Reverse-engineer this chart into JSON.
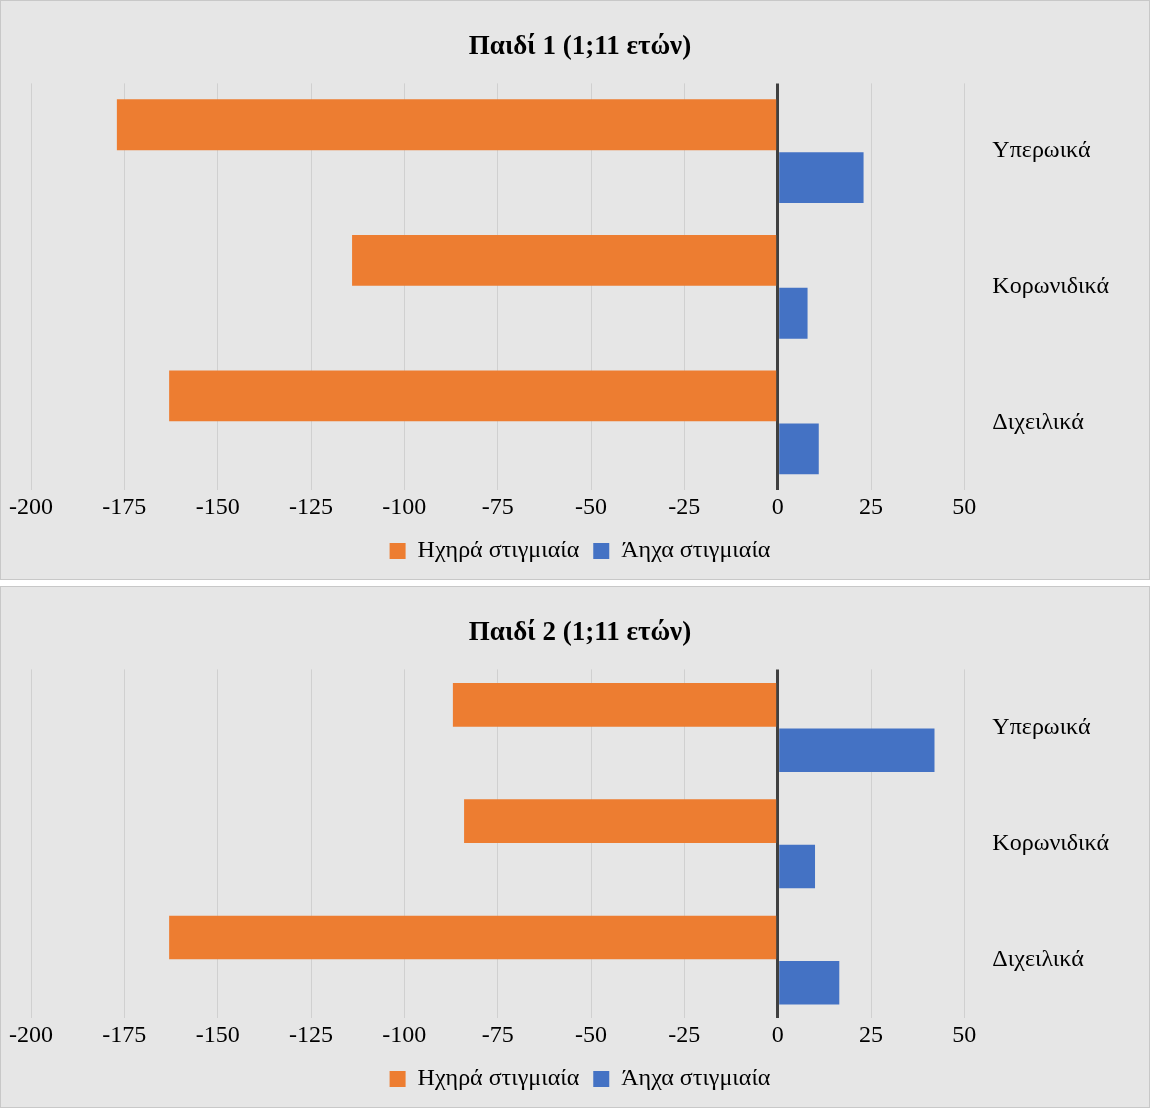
{
  "chart_data": [
    {
      "type": "bar",
      "orientation": "horizontal",
      "title": "Παιδί 1 (1;11 ετών)",
      "categories": [
        "Υπερωικά",
        "Κορωνιδικά",
        "Διχειλικά"
      ],
      "series": [
        {
          "name": "Ηχηρά στιγμιαία",
          "color": "#ed7d31",
          "values": [
            -177,
            -114,
            -163
          ]
        },
        {
          "name": "Άηχα στιγμιαία",
          "color": "#4472c4",
          "values": [
            23,
            8,
            11
          ]
        }
      ],
      "xlim": [
        -200,
        50
      ],
      "xticks": [
        -200,
        -175,
        -150,
        -125,
        -100,
        -75,
        -50,
        -25,
        0,
        25,
        50
      ],
      "grid": "x",
      "legend": "bottom"
    },
    {
      "type": "bar",
      "orientation": "horizontal",
      "title": "Παιδί 2 (1;11 ετών)",
      "categories": [
        "Υπερωικά",
        "Κορωνιδικά",
        "Διχειλικά"
      ],
      "series": [
        {
          "name": "Ηχηρά στιγμιαία",
          "color": "#ed7d31",
          "values": [
            -87,
            -84,
            -163
          ]
        },
        {
          "name": "Άηχα στιγμιαία",
          "color": "#4472c4",
          "values": [
            42,
            10,
            16.5
          ]
        }
      ],
      "xlim": [
        -200,
        50
      ],
      "xticks": [
        -200,
        -175,
        -150,
        -125,
        -100,
        -75,
        -50,
        -25,
        0,
        25,
        50
      ],
      "grid": "x",
      "legend": "bottom"
    }
  ]
}
